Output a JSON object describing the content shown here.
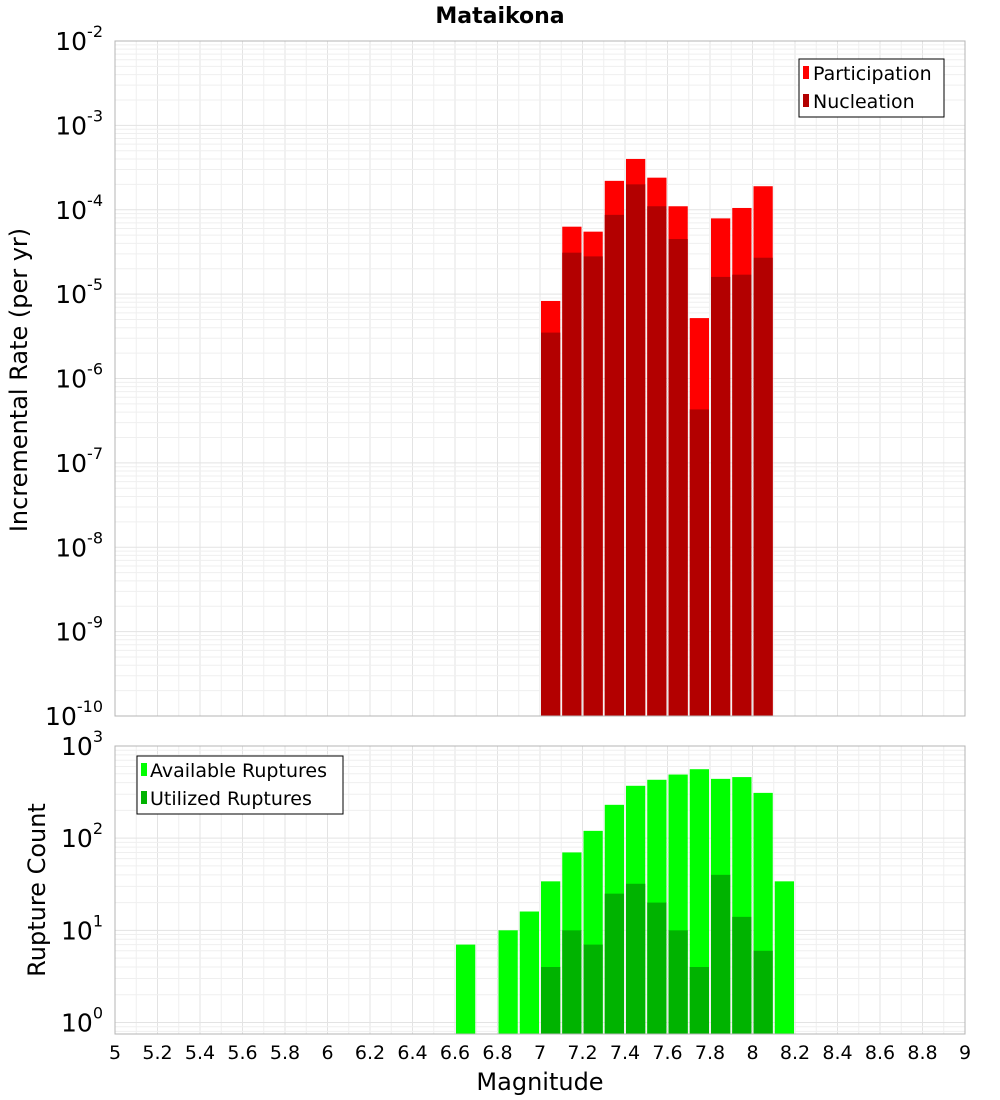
{
  "chart_data": [
    {
      "type": "bar",
      "title": "Mataikona",
      "ylabel": "Incremental Rate (per yr)",
      "xlim": [
        5,
        9
      ],
      "ylim": [
        1e-10,
        0.01
      ],
      "yscale": "log",
      "y_tick_exponents": [
        "-10",
        "-9",
        "-8",
        "-7",
        "-6",
        "-5",
        "-4",
        "-3",
        "-2"
      ],
      "y_tick_base": "10",
      "bin_width": 0.1,
      "grid": true,
      "legend_position": "top-right",
      "series": [
        {
          "name": "Participation",
          "color": "#ff0000",
          "x": [
            7.05,
            7.15,
            7.25,
            7.35,
            7.45,
            7.55,
            7.65,
            7.75,
            7.85,
            7.95,
            8.05
          ],
          "values": [
            8.3e-06,
            6.3e-05,
            5.5e-05,
            0.00022,
            0.0004,
            0.00024,
            0.00011,
            5.2e-06,
            7.9e-05,
            0.000105,
            0.00019
          ]
        },
        {
          "name": "Nucleation",
          "color": "#b30000",
          "x": [
            7.05,
            7.15,
            7.25,
            7.35,
            7.45,
            7.55,
            7.65,
            7.75,
            7.85,
            7.95,
            8.05
          ],
          "values": [
            3.5e-06,
            3.1e-05,
            2.8e-05,
            8.7e-05,
            0.0002,
            0.00011,
            4.5e-05,
            4.3e-07,
            1.6e-05,
            1.7e-05,
            2.7e-05
          ]
        }
      ]
    },
    {
      "type": "bar",
      "xlabel": "Magnitude",
      "ylabel": "Rupture Count",
      "xlim": [
        5,
        9
      ],
      "ylim": [
        0.75,
        1000
      ],
      "yscale": "log",
      "y_tick_exponents": [
        "0",
        "1",
        "2",
        "3"
      ],
      "y_tick_base": "10",
      "x_ticks": [
        "5",
        "5.2",
        "5.4",
        "5.6",
        "5.8",
        "6",
        "6.2",
        "6.4",
        "6.6",
        "6.8",
        "7",
        "7.2",
        "7.4",
        "7.6",
        "7.8",
        "8",
        "8.2",
        "8.4",
        "8.6",
        "8.8",
        "9"
      ],
      "bin_width": 0.1,
      "grid": true,
      "legend_position": "top-left",
      "series": [
        {
          "name": "Available Ruptures",
          "color": "#00ff00",
          "x": [
            6.65,
            6.85,
            6.95,
            7.05,
            7.15,
            7.25,
            7.35,
            7.45,
            7.55,
            7.65,
            7.75,
            7.85,
            7.95,
            8.05,
            8.15
          ],
          "values": [
            7,
            10,
            16,
            34,
            70,
            120,
            230,
            370,
            430,
            490,
            560,
            440,
            460,
            310,
            34
          ]
        },
        {
          "name": "Utilized Ruptures",
          "color": "#00b300",
          "x": [
            7.05,
            7.15,
            7.25,
            7.35,
            7.45,
            7.55,
            7.65,
            7.75,
            7.85,
            7.95,
            8.05
          ],
          "values": [
            4,
            10,
            7,
            25,
            32,
            20,
            10,
            4,
            40,
            14,
            6
          ]
        }
      ]
    }
  ]
}
